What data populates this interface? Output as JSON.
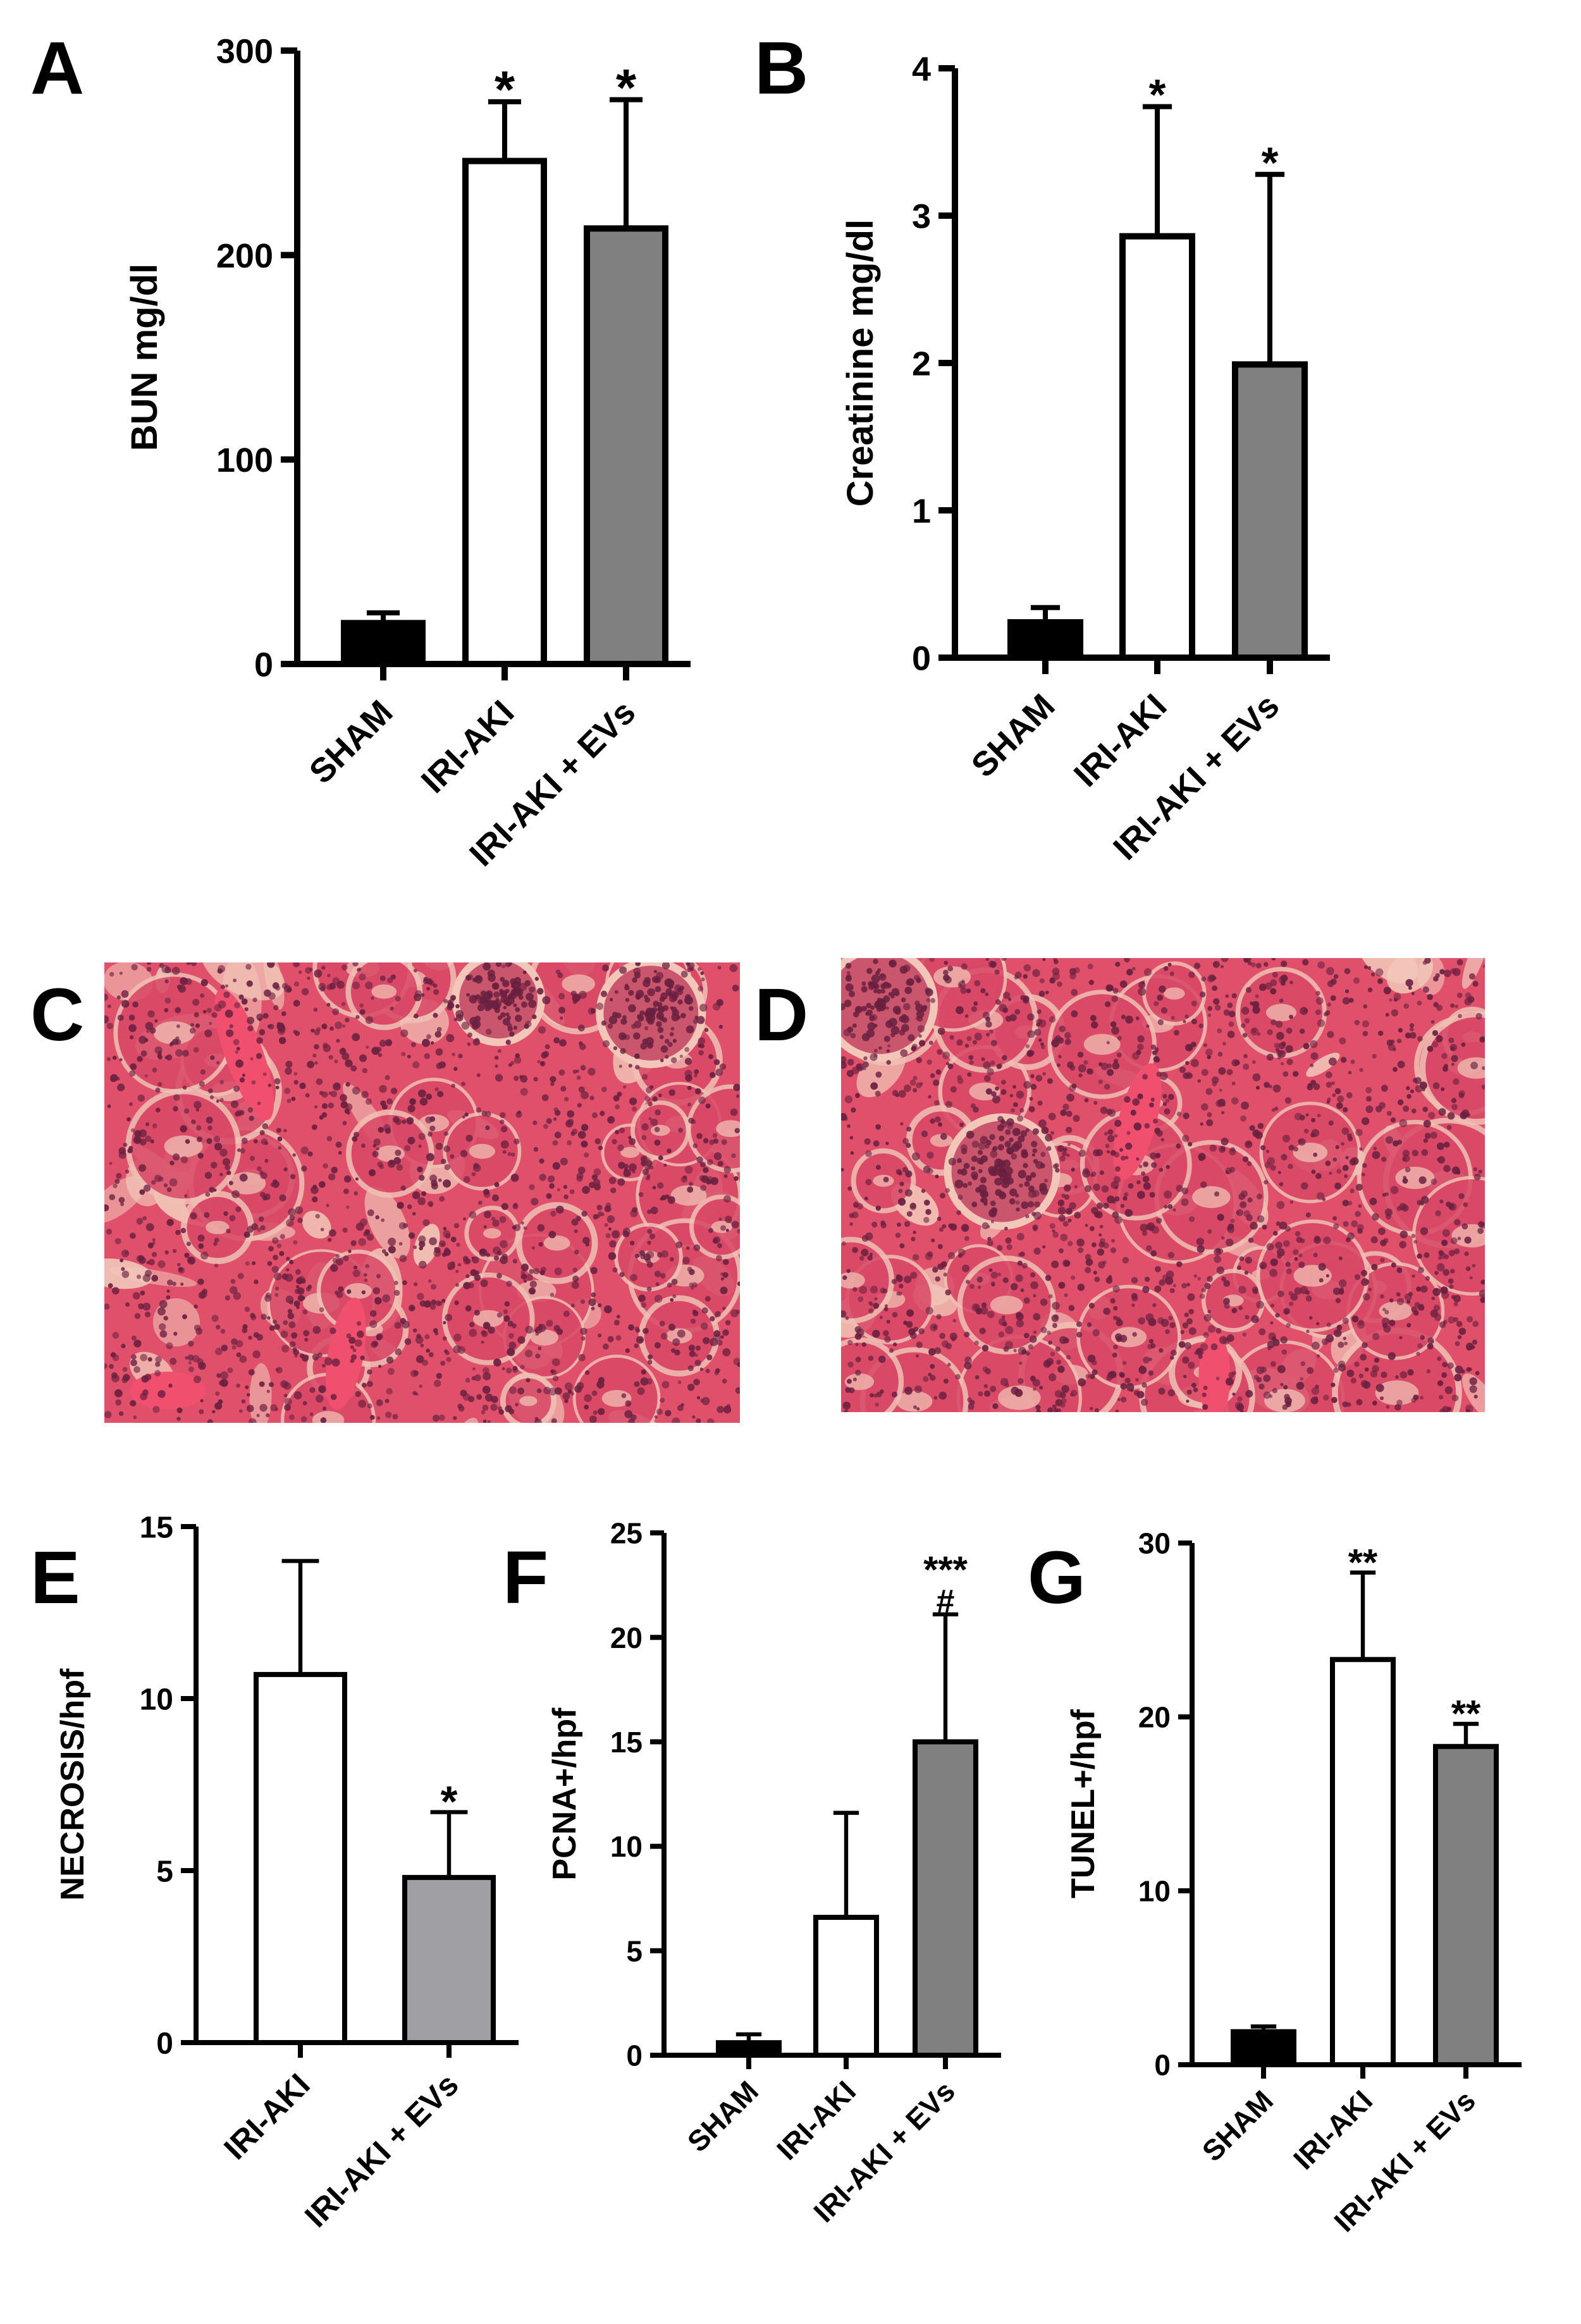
{
  "panels": {
    "C": {
      "letter": "C"
    },
    "D": {
      "letter": "D"
    }
  },
  "colors": {
    "sham": "#000000",
    "iri_aki": "#ffffff",
    "iri_aki_evs": "#808080",
    "iri_aki_evs_E": "#a0a0a4",
    "tissue_base": "#e0506a",
    "tissue_light": "#f2c7b9",
    "nuclei": "#6a2040"
  },
  "chart_data": [
    {
      "panel": "A",
      "type": "bar",
      "categories": [
        "SHAM",
        "IRI-AKI",
        "IRI-AKI + EVs"
      ],
      "values": [
        20,
        246,
        213
      ],
      "errors": [
        5,
        29,
        63
      ],
      "significance": [
        "",
        "*",
        "*"
      ],
      "ylabel": "BUN mg/dl",
      "ylim": [
        0,
        300
      ],
      "yticks": [
        0,
        100,
        200,
        300
      ],
      "ytick_labels": [
        "0",
        "100",
        "200",
        "300"
      ]
    },
    {
      "panel": "B",
      "type": "bar",
      "categories": [
        "SHAM",
        "IRI-AKI",
        "IRI-AKI + EVs"
      ],
      "values": [
        0.24,
        2.86,
        1.99
      ],
      "errors": [
        0.1,
        0.88,
        1.29
      ],
      "significance": [
        "",
        "*",
        "*"
      ],
      "ylabel": "Creatinine mg/dl",
      "ylim": [
        0,
        4
      ],
      "yticks": [
        0,
        1,
        2,
        3,
        4
      ],
      "ytick_labels": [
        "0",
        "1",
        "2",
        "3",
        "4"
      ]
    },
    {
      "panel": "E",
      "type": "bar",
      "categories": [
        "IRI-AKI",
        "IRI-AKI + EVs"
      ],
      "values": [
        10.7,
        4.8
      ],
      "errors": [
        3.3,
        1.9
      ],
      "significance": [
        "",
        "*"
      ],
      "ylabel": "NECROSIS/hpf",
      "ylim": [
        0,
        15
      ],
      "yticks": [
        0,
        5,
        10,
        15
      ],
      "ytick_labels": [
        "0",
        "5",
        "10",
        "15"
      ]
    },
    {
      "panel": "F",
      "type": "bar",
      "categories": [
        "SHAM",
        "IRI-AKI",
        "IRI-AKI + EVs"
      ],
      "values": [
        0.6,
        6.6,
        15.0
      ],
      "errors": [
        0.4,
        5.0,
        6.1
      ],
      "significance": [
        "",
        "",
        "***"
      ],
      "significance2": [
        "",
        "",
        "#"
      ],
      "ylabel": "PCNA+/hpf",
      "ylim": [
        0,
        25
      ],
      "yticks": [
        0,
        5,
        10,
        15,
        20,
        25
      ],
      "ytick_labels": [
        "0",
        "5",
        "10",
        "15",
        "20",
        "25"
      ]
    },
    {
      "panel": "G",
      "type": "bar",
      "categories": [
        "SHAM",
        "IRI-AKI",
        "IRI-AKI + EVs"
      ],
      "values": [
        1.9,
        23.3,
        18.3
      ],
      "errors": [
        0.3,
        5.0,
        1.3
      ],
      "significance": [
        "",
        "**",
        "**"
      ],
      "ylabel": "TUNEL+/hpf",
      "ylim": [
        0,
        30
      ],
      "yticks": [
        0,
        10,
        20,
        30
      ],
      "ytick_labels": [
        "0",
        "10",
        "20",
        "30"
      ]
    }
  ]
}
